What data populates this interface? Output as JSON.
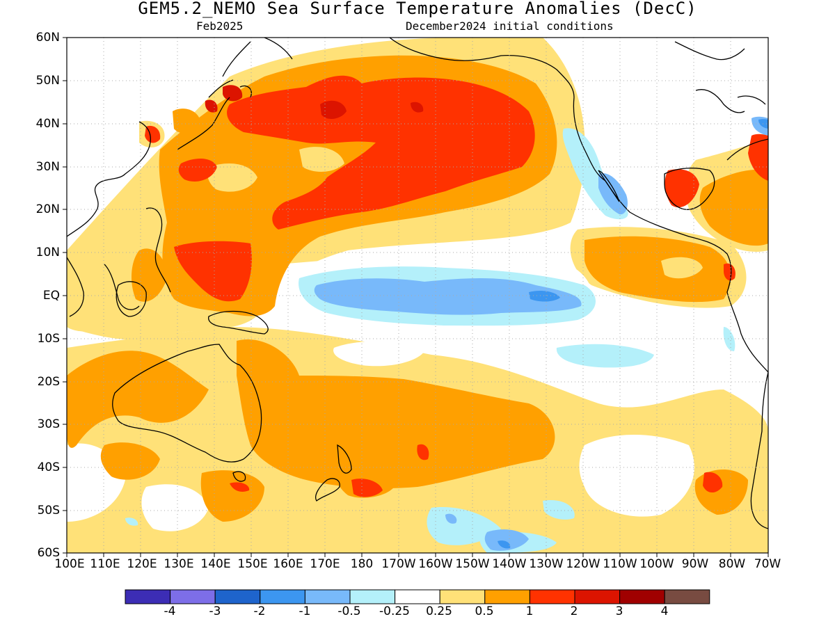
{
  "title": "GEM5.2_NEMO Sea Surface Temperature Anomalies (DecC)",
  "subtitle_left": "Feb2025",
  "subtitle_right": "December2024 initial conditions",
  "lat_labels": [
    "60N",
    "50N",
    "40N",
    "30N",
    "20N",
    "10N",
    "EQ",
    "10S",
    "20S",
    "30S",
    "40S",
    "50S",
    "60S"
  ],
  "lon_labels": [
    "100E",
    "110E",
    "120E",
    "130E",
    "140E",
    "150E",
    "160E",
    "170E",
    "180",
    "170W",
    "160W",
    "150W",
    "140W",
    "130W",
    "120W",
    "110W",
    "100W",
    "90W",
    "80W",
    "70W"
  ],
  "colorbar": {
    "colors": [
      "#3c2db5",
      "#7d6ee8",
      "#1e64cc",
      "#3c96f0",
      "#78b9fa",
      "#b4f0fa",
      "#ffffff",
      "#ffe178",
      "#ffa000",
      "#ff3200",
      "#dc1400",
      "#a00000",
      "#784b41"
    ],
    "labels": [
      "-4",
      "-3",
      "-2",
      "-1",
      "-0.5",
      "-0.25",
      "0.25",
      "0.5",
      "1",
      "2",
      "3",
      "4"
    ]
  },
  "colors": {
    "warm_light": "#ffe178",
    "warm_mid": "#ffa000",
    "warm_strong": "#ff3200",
    "warm_extreme": "#dc1400",
    "cool_light": "#b4f0fa",
    "cool_mid": "#78b9fa",
    "cool_strong": "#3c96f0",
    "cool_extreme": "#1e64cc",
    "land_outline": "#000000",
    "grid": "#aaaaaa"
  }
}
